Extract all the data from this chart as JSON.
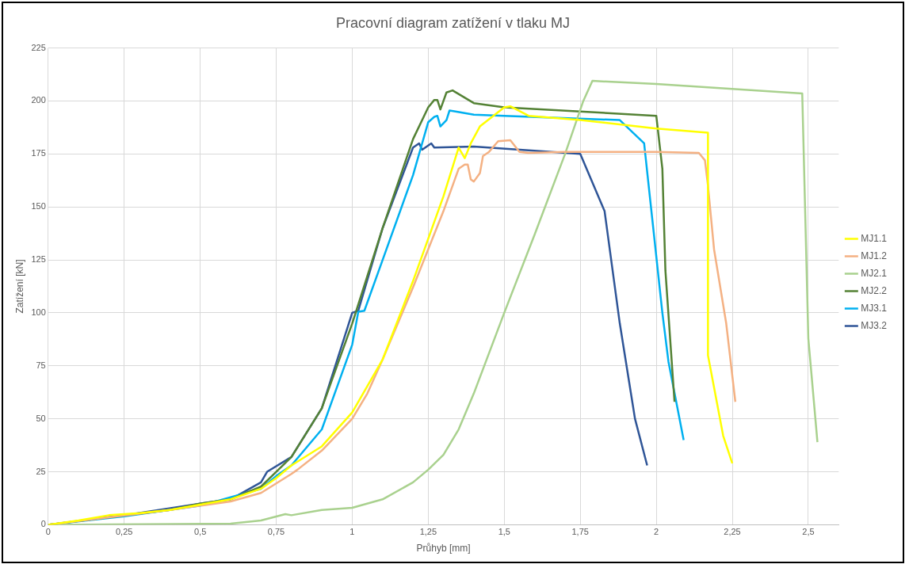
{
  "chart_data": {
    "type": "line",
    "title": "Pracovní diagram zatížení v tlaku MJ",
    "xlabel": "Průhyb [mm]",
    "ylabel": "Zatížení [kN]",
    "xlim": [
      0,
      2.6
    ],
    "xticks": [
      0,
      {
        "value": 0.25,
        "label": "0,25"
      },
      {
        "value": 0.5,
        "label": "0,5"
      },
      {
        "value": 0.75,
        "label": "0,75"
      },
      1,
      {
        "value": 1.25,
        "label": "1,25"
      },
      {
        "value": 1.5,
        "label": "1,5"
      },
      {
        "value": 1.75,
        "label": "1,75"
      },
      2,
      {
        "value": 2.25,
        "label": "2,25"
      },
      {
        "value": 2.5,
        "label": "2,5"
      }
    ],
    "ylim": [
      0,
      225
    ],
    "yticks": [
      0,
      25,
      50,
      75,
      100,
      125,
      150,
      175,
      200,
      225
    ],
    "grid": true,
    "legend": "right",
    "marker": "none",
    "line_style": "solid",
    "series": [
      {
        "name": "MJ1.1",
        "color": "#ffff00",
        "x": [
          0,
          0.1,
          0.2,
          0.3,
          0.4,
          0.5,
          0.6,
          0.7,
          0.75,
          0.8,
          0.9,
          1.0,
          1.1,
          1.2,
          1.3,
          1.35,
          1.37,
          1.39,
          1.42,
          1.5,
          1.52,
          1.58,
          1.75,
          2.0,
          2.17,
          2.17,
          2.22,
          2.25
        ],
        "values": [
          0,
          2,
          4.5,
          5.5,
          7,
          9.5,
          12,
          17,
          22,
          28,
          37,
          53,
          78,
          115,
          155,
          178,
          173,
          180,
          188,
          197,
          197.5,
          193,
          191,
          187,
          185,
          80,
          42,
          29
        ]
      },
      {
        "name": "MJ1.2",
        "color": "#f4b183",
        "x": [
          0,
          0.2,
          0.4,
          0.6,
          0.7,
          0.8,
          0.82,
          0.9,
          1.0,
          1.05,
          1.1,
          1.2,
          1.3,
          1.35,
          1.37,
          1.38,
          1.39,
          1.4,
          1.42,
          1.43,
          1.45,
          1.48,
          1.52,
          1.55,
          1.58,
          1.7,
          2.0,
          2.14,
          2.16,
          2.17,
          2.19,
          2.23,
          2.26
        ],
        "values": [
          0,
          3.5,
          7,
          11,
          15,
          24,
          26,
          35,
          50,
          62,
          78,
          112,
          148,
          168,
          170,
          170,
          163,
          162,
          166,
          174,
          176,
          181,
          181.5,
          176,
          175.5,
          176,
          176,
          175.5,
          172,
          160,
          130,
          95,
          58
        ]
      },
      {
        "name": "MJ2.1",
        "color": "#a9d18e",
        "x": [
          0,
          0.6,
          0.7,
          0.78,
          0.8,
          0.9,
          1.0,
          1.1,
          1.2,
          1.25,
          1.3,
          1.35,
          1.4,
          1.5,
          1.6,
          1.7,
          1.76,
          1.79,
          2.0,
          2.48,
          2.5,
          2.53
        ],
        "values": [
          0,
          0.5,
          2,
          5,
          4.5,
          7,
          8,
          12,
          20,
          26,
          33,
          45,
          62,
          100,
          137,
          175,
          200,
          209.5,
          208,
          203.5,
          88,
          39
        ]
      },
      {
        "name": "MJ2.2",
        "color": "#548235",
        "x": [
          0,
          0.4,
          0.5,
          0.6,
          0.7,
          0.75,
          0.8,
          0.9,
          1.0,
          1.1,
          1.2,
          1.25,
          1.27,
          1.28,
          1.29,
          1.31,
          1.33,
          1.4,
          1.5,
          2.0,
          2.02,
          2.03,
          2.06
        ],
        "values": [
          0,
          7,
          10,
          12,
          18,
          25,
          32,
          55,
          95,
          140,
          182,
          197,
          200.5,
          200.5,
          196,
          204,
          205,
          199,
          197,
          193,
          168,
          120,
          58
        ]
      },
      {
        "name": "MJ3.1",
        "color": "#00b0f0",
        "x": [
          0,
          0.25,
          0.5,
          0.7,
          0.75,
          0.8,
          0.9,
          1.0,
          1.02,
          1.04,
          1.1,
          1.2,
          1.25,
          1.27,
          1.28,
          1.29,
          1.31,
          1.32,
          1.34,
          1.4,
          1.5,
          1.88,
          1.96,
          1.99,
          2.02,
          2.04,
          2.09
        ],
        "values": [
          0,
          4,
          9,
          17,
          23,
          28,
          45,
          85,
          100.5,
          101,
          125,
          165,
          190,
          192.5,
          193,
          188,
          191,
          195.5,
          195,
          193.5,
          193,
          191,
          180,
          140,
          100,
          77,
          40
        ]
      },
      {
        "name": "MJ3.2",
        "color": "#2f5597",
        "x": [
          0,
          0.25,
          0.5,
          0.6,
          0.7,
          0.72,
          0.8,
          0.9,
          1.0,
          1.02,
          1.1,
          1.2,
          1.22,
          1.23,
          1.26,
          1.27,
          1.4,
          1.75,
          1.83,
          1.88,
          1.93,
          1.97
        ],
        "values": [
          0,
          4.5,
          10,
          12,
          20,
          25,
          32,
          55,
          100,
          101,
          140,
          178,
          180,
          177,
          180,
          178,
          178.5,
          175,
          148,
          95,
          50,
          28
        ]
      }
    ]
  }
}
